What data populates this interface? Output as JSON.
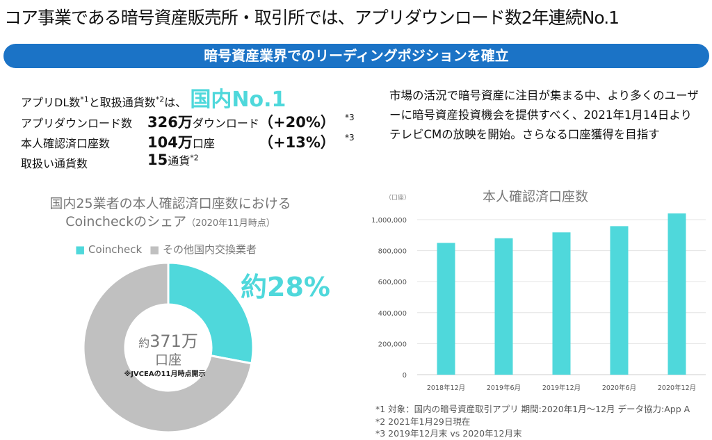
{
  "title": "コア事業である暗号資産販売所・取引所では、アプリダウンロード数2年連続No.1",
  "banner": "暗号資産業界でのリーディングポジションを確立",
  "kpi": {
    "headline_prefix": "アプリDL数",
    "sup1": "*1",
    "headline_mid": "と取扱通貨数",
    "sup2": "*2",
    "headline_suffix": "は、",
    "headline_highlight": "国内No.1",
    "rows": [
      {
        "label": "アプリダウンロード数",
        "value": "326万",
        "unit": "ダウンロード",
        "change": "（+20%）",
        "note": "*3"
      },
      {
        "label": "本人確認済口座数",
        "value": "104万",
        "unit": "口座",
        "change": "（+13%）",
        "note": "*3"
      },
      {
        "label": "取扱い通貨数",
        "value": "15",
        "unit": "通貨",
        "change": "",
        "note": "*2"
      }
    ]
  },
  "paragraph": "市場の活況で暗号資産に注目が集まる中、より多くのユーザーに暗号資産投資機会を提供すべく、2021年1月14日よりテレビCMの放映を開始。さらなる口座獲得を目指す",
  "chart_data": [
    {
      "type": "pie",
      "title": "国内25業者の本人確認済口座数における",
      "subtitle": "Coincheckのシェア",
      "subtitle_note": "（2020年11月時点）",
      "donut": true,
      "categories": [
        "Coincheck",
        "その他国内交換業者"
      ],
      "values": [
        28,
        72
      ],
      "colors": [
        "#4fd8db",
        "#c0c0c0"
      ],
      "annotation": "約28%",
      "center_label_1a": "約",
      "center_label_1b": "371万",
      "center_label_2": "口座",
      "center_note": "※JVCEAの11月時点開示",
      "legend": "top"
    },
    {
      "type": "bar",
      "title": "本人確認済口座数",
      "ylabel": "（口座）",
      "categories": [
        "2018年12月",
        "2019年6月",
        "2019年12月",
        "2020年6月",
        "2020年12月"
      ],
      "values": [
        850000,
        880000,
        918000,
        958000,
        1040000
      ],
      "ylim": [
        0,
        1000000
      ],
      "yticks": [
        "0",
        "200,000",
        "400,000",
        "600,000",
        "800,000",
        "1,000,000"
      ],
      "color": "#4fd8db",
      "grid": true
    }
  ],
  "footnotes": [
    "*1  対象：国内の暗号資産取引アプリ  期間:2020年1月～12月  データ協力:App A",
    "*2  2021年1月29日現在",
    "*3  2019年12月末 vs 2020年12月末"
  ]
}
